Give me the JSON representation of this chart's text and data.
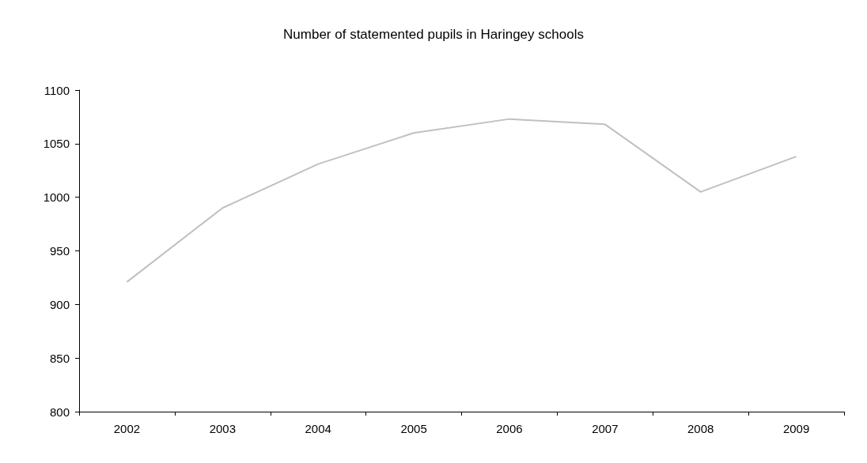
{
  "chart_data": {
    "type": "line",
    "title": "Number of statemented pupils in Haringey schools",
    "categories": [
      "2002",
      "2003",
      "2004",
      "2005",
      "2006",
      "2007",
      "2008",
      "2009"
    ],
    "series": [
      {
        "color": "#c0c0c0",
        "values": [
          921,
          990,
          1031,
          1060,
          1073,
          1068,
          1005,
          1038
        ]
      }
    ],
    "ylim": [
      800,
      1100
    ],
    "yticks": [
      800,
      850,
      900,
      950,
      1000,
      1050,
      1100
    ],
    "grid": false,
    "marker": "none",
    "line_style": "solid"
  }
}
